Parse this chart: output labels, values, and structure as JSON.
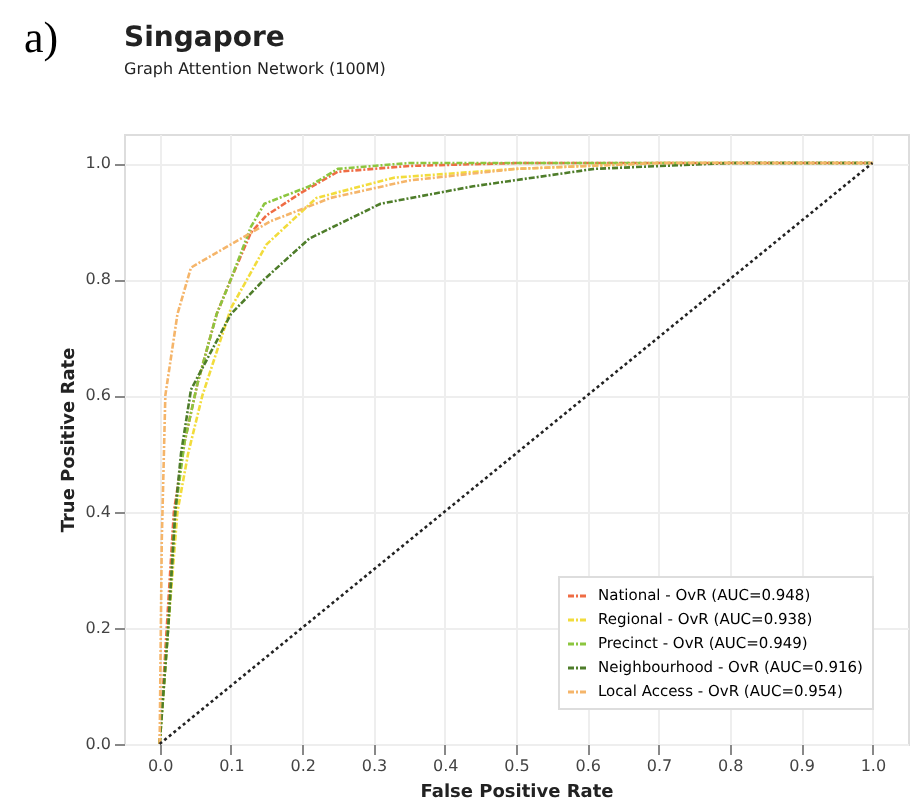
{
  "chart_data": {
    "type": "line",
    "title": "Singapore",
    "subtitle": "Graph Attention Network (100M)",
    "xlabel": "False Positive Rate",
    "ylabel": "True Positive Rate",
    "annotations": [
      "a)"
    ],
    "xlim": [
      -0.05,
      1.05
    ],
    "ylim": [
      0,
      1.05
    ],
    "xticks": [
      {
        "value": 0,
        "label": "0.0"
      },
      0.1,
      0.2,
      0.3,
      0.4,
      0.5,
      0.6,
      0.7,
      0.8,
      0.9,
      {
        "value": 1,
        "label": "1.0"
      }
    ],
    "yticks": [
      {
        "value": 0,
        "label": "0.0"
      },
      0.2,
      0.4,
      0.6,
      0.8,
      {
        "value": 1,
        "label": "1.0"
      }
    ],
    "grid": true,
    "legend": "bottom right",
    "marker": "none",
    "series": [
      {
        "name": "National - OvR (AUC=0.948)",
        "color": "#ef6c44",
        "line_style": "dashed",
        "x": [
          0,
          0.01,
          0.02,
          0.035,
          0.053,
          0.08,
          0.1,
          0.128,
          0.15,
          0.2,
          0.25,
          0.35,
          0.5,
          0.7,
          1.0
        ],
        "values": [
          0,
          0.2,
          0.4,
          0.52,
          0.62,
          0.74,
          0.8,
          0.88,
          0.91,
          0.95,
          0.985,
          0.995,
          1.0,
          1.0,
          1.0
        ]
      },
      {
        "name": "Regional - OvR (AUC=0.938)",
        "color": "#f2dc3c",
        "line_style": "dashed",
        "x": [
          0,
          0.012,
          0.025,
          0.04,
          0.06,
          0.1,
          0.15,
          0.22,
          0.33,
          0.5,
          0.7,
          1.0
        ],
        "values": [
          0,
          0.2,
          0.4,
          0.5,
          0.6,
          0.75,
          0.86,
          0.94,
          0.975,
          0.99,
          1.0,
          1.0
        ]
      },
      {
        "name": "Precinct - OvR (AUC=0.949)",
        "color": "#8cc63f",
        "line_style": "dashed",
        "x": [
          0,
          0.012,
          0.022,
          0.035,
          0.053,
          0.08,
          0.1,
          0.128,
          0.147,
          0.21,
          0.25,
          0.35,
          0.5,
          1.0
        ],
        "values": [
          0,
          0.2,
          0.4,
          0.52,
          0.62,
          0.74,
          0.8,
          0.89,
          0.93,
          0.96,
          0.99,
          1.0,
          1.0,
          1.0
        ]
      },
      {
        "name": "Neighbourhood - OvR (AUC=0.916)",
        "color": "#4e7d2a",
        "line_style": "dashed",
        "x": [
          0,
          0.012,
          0.022,
          0.03,
          0.044,
          0.1,
          0.147,
          0.21,
          0.31,
          0.44,
          0.61,
          0.8,
          1.0
        ],
        "values": [
          0,
          0.2,
          0.4,
          0.5,
          0.61,
          0.74,
          0.8,
          0.87,
          0.93,
          0.96,
          0.99,
          1.0,
          1.0
        ]
      },
      {
        "name": "Local Access - OvR (AUC=0.954)",
        "color": "#f5b56a",
        "line_style": "dashed",
        "x": [
          0,
          0.003,
          0.008,
          0.025,
          0.044,
          0.1,
          0.156,
          0.24,
          0.35,
          0.5,
          0.7,
          1.0
        ],
        "values": [
          0,
          0.35,
          0.6,
          0.74,
          0.82,
          0.86,
          0.9,
          0.94,
          0.97,
          0.99,
          1.0,
          1.0
        ]
      },
      {
        "color": "#222222",
        "line_style": "dotted",
        "x": [
          0,
          1
        ],
        "values": [
          0,
          1
        ]
      }
    ]
  }
}
